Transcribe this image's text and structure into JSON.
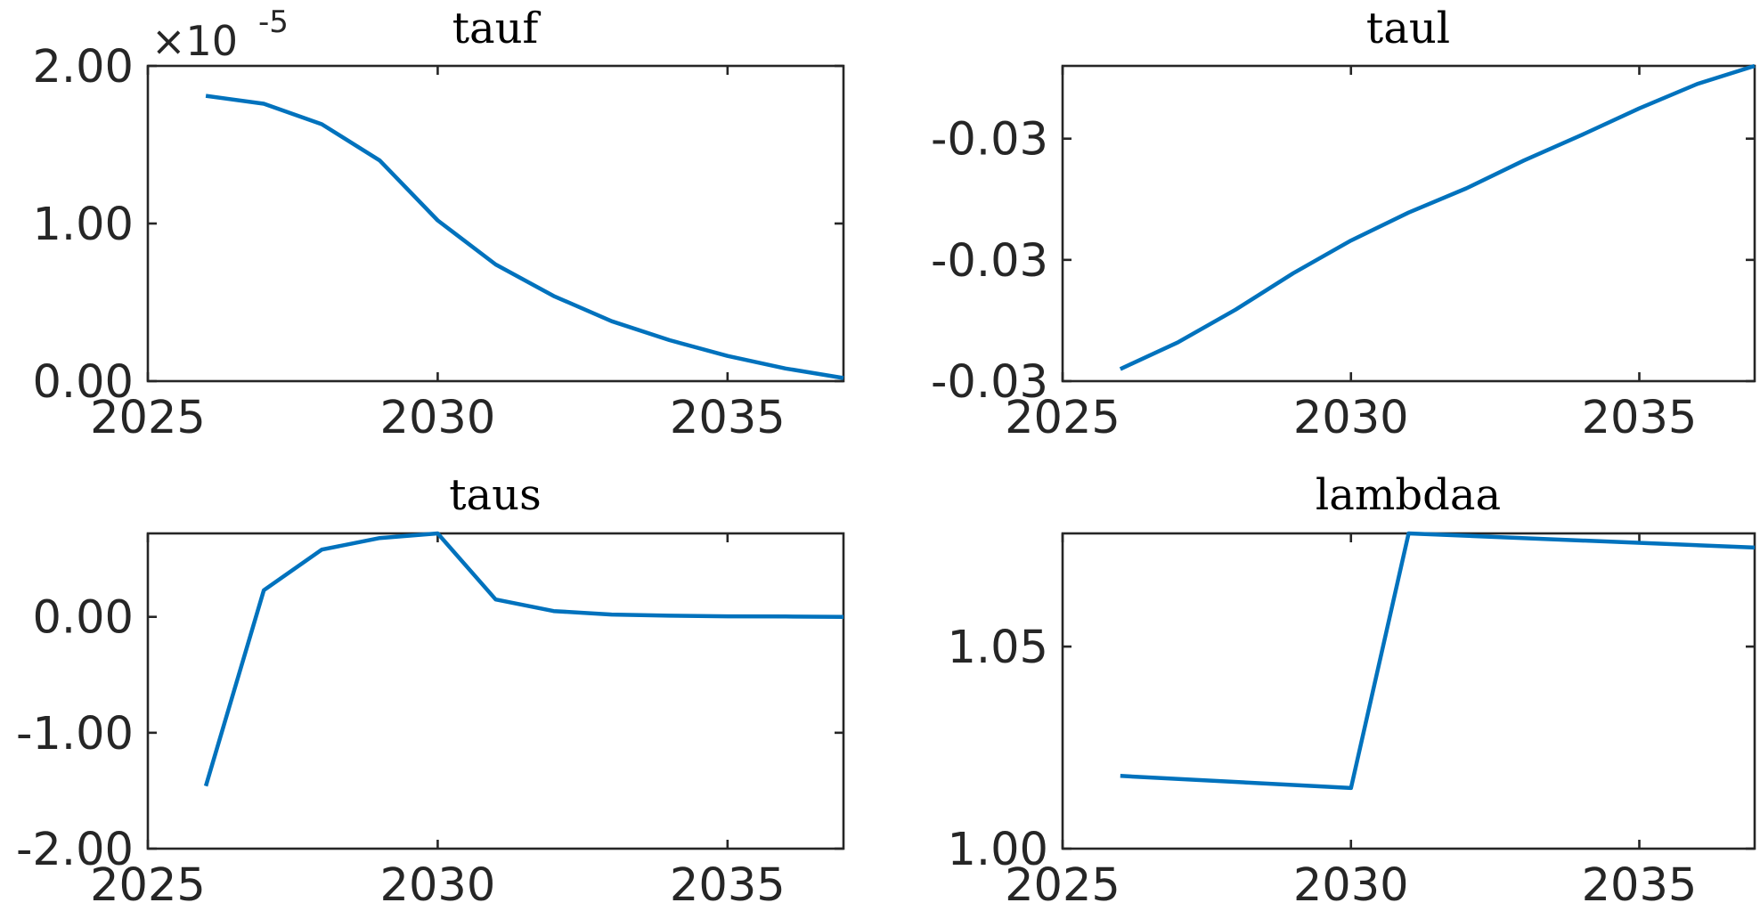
{
  "colors": {
    "line": "#0072BD",
    "axis": "#262626",
    "background": "#ffffff"
  },
  "chart_data": [
    {
      "type": "line",
      "title": "tauf",
      "xlim": [
        2025,
        2037
      ],
      "ylim": [
        0,
        2.0
      ],
      "x_ticks": [
        2025,
        2030,
        2035
      ],
      "x_tick_labels": [
        "2025",
        "2030",
        "2035"
      ],
      "y_ticks": [
        0,
        1,
        2
      ],
      "y_tick_labels": [
        "0.00",
        "1.00",
        "2.00"
      ],
      "y_multiplier": {
        "base": "×10",
        "exponent": "-5"
      },
      "x": [
        2026,
        2027,
        2028,
        2029,
        2030,
        2031,
        2032,
        2033,
        2034,
        2035,
        2036,
        2037
      ],
      "series": [
        {
          "values": [
            1.81,
            1.76,
            1.63,
            1.4,
            1.02,
            0.74,
            0.54,
            0.38,
            0.26,
            0.16,
            0.08,
            0.02
          ]
        }
      ],
      "grid": false,
      "legend": "none"
    },
    {
      "type": "line",
      "title": "taul",
      "xlim": [
        2025,
        2037
      ],
      "ylim": [
        -0.0313,
        -0.0287
      ],
      "x_ticks": [
        2025,
        2030,
        2035
      ],
      "x_tick_labels": [
        "2025",
        "2030",
        "2035"
      ],
      "y_ticks": [
        -0.0313,
        -0.0303,
        -0.0293
      ],
      "y_tick_labels": [
        "-0.03",
        "-0.03",
        "-0.03"
      ],
      "x": [
        2026,
        2027,
        2028,
        2029,
        2030,
        2031,
        2032,
        2033,
        2034,
        2035,
        2036,
        2037
      ],
      "series": [
        {
          "values": [
            -0.0312,
            -0.03098,
            -0.03071,
            -0.03041,
            -0.03014,
            -0.02991,
            -0.02971,
            -0.02948,
            -0.02927,
            -0.02905,
            -0.02885,
            -0.0287
          ]
        }
      ],
      "grid": false,
      "legend": "none"
    },
    {
      "type": "line",
      "title": "taus",
      "xlim": [
        2025,
        2037
      ],
      "ylim": [
        -2.0,
        0.72
      ],
      "x_ticks": [
        2025,
        2030,
        2035
      ],
      "x_tick_labels": [
        "2025",
        "2030",
        "2035"
      ],
      "y_ticks": [
        -2,
        -1,
        0
      ],
      "y_tick_labels": [
        "-2.00",
        "-1.00",
        "0.00"
      ],
      "x": [
        2026,
        2027,
        2028,
        2029,
        2030,
        2031,
        2032,
        2033,
        2034,
        2035,
        2036,
        2037
      ],
      "series": [
        {
          "values": [
            -1.46,
            0.23,
            0.58,
            0.68,
            0.72,
            0.15,
            0.05,
            0.02,
            0.01,
            0.005,
            0.003,
            0.0
          ]
        }
      ],
      "grid": false,
      "legend": "none"
    },
    {
      "type": "line",
      "title": "lambdaa",
      "xlim": [
        2025,
        2037
      ],
      "ylim": [
        1.0,
        1.078
      ],
      "x_ticks": [
        2025,
        2030,
        2035
      ],
      "x_tick_labels": [
        "2025",
        "2030",
        "2035"
      ],
      "y_ticks": [
        1.0,
        1.05
      ],
      "y_tick_labels": [
        "1.00",
        "1.05"
      ],
      "x": [
        2026,
        2030,
        2031,
        2037
      ],
      "series": [
        {
          "values": [
            1.018,
            1.015,
            1.078,
            1.0745
          ]
        }
      ],
      "grid": false,
      "legend": "none"
    }
  ]
}
